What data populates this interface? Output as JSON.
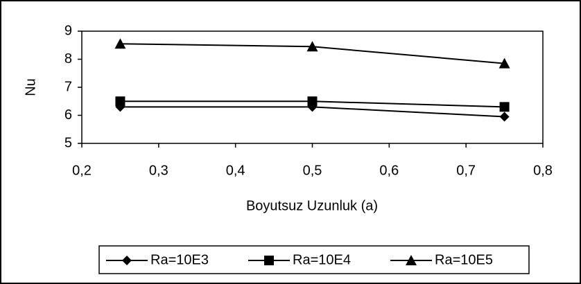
{
  "chart_data": {
    "type": "line",
    "x_label": "Boyutsuz Uzunluk (a)",
    "y_label": "Nu",
    "x": [
      0.25,
      0.5,
      0.75
    ],
    "series": [
      {
        "name": "Ra=10E3",
        "color": "#000000",
        "marker": "diamond",
        "values": [
          6.3,
          6.3,
          5.95
        ]
      },
      {
        "name": "Ra=10E4",
        "color": "#000000",
        "marker": "square",
        "values": [
          6.5,
          6.5,
          6.3
        ]
      },
      {
        "name": "Ra=10E5",
        "color": "#000000",
        "marker": "triangle",
        "values": [
          8.55,
          8.45,
          7.85
        ]
      }
    ],
    "xlim": [
      0.2,
      0.8
    ],
    "xticks": [
      {
        "value": 0.2,
        "label": "0,2"
      },
      {
        "value": 0.3,
        "label": "0,3"
      },
      {
        "value": 0.4,
        "label": "0,4"
      },
      {
        "value": 0.5,
        "label": "0,5"
      },
      {
        "value": 0.6,
        "label": "0,6"
      },
      {
        "value": 0.7,
        "label": "0,7"
      },
      {
        "value": 0.8,
        "label": "0,8"
      }
    ],
    "ylim": [
      5,
      9
    ],
    "yticks": [
      5,
      6,
      7,
      8,
      9
    ],
    "legend": "bottom",
    "grid": false
  }
}
